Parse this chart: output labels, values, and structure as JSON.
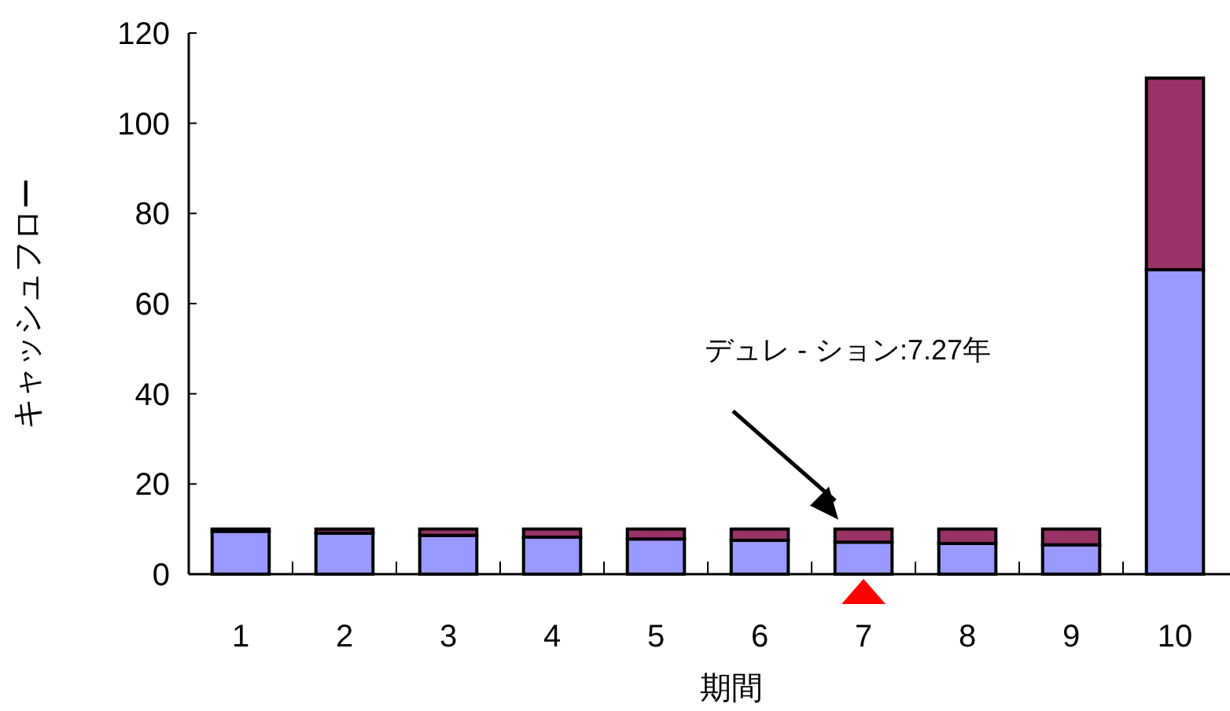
{
  "chart_data": {
    "type": "bar",
    "stacked": true,
    "xlabel": "期間",
    "ylabel": "キャッシュフロー",
    "categories": [
      "1",
      "2",
      "3",
      "4",
      "5",
      "6",
      "7",
      "8",
      "9",
      "10"
    ],
    "series": [
      {
        "color": "#9999ff",
        "values": [
          9.5,
          9.1,
          8.6,
          8.2,
          7.8,
          7.5,
          7.1,
          6.8,
          6.5,
          67.5
        ]
      },
      {
        "color": "#993366",
        "values": [
          0.5,
          0.9,
          1.4,
          1.8,
          2.2,
          2.5,
          2.9,
          3.2,
          3.5,
          42.5
        ]
      }
    ],
    "ylim": [
      0,
      120
    ],
    "yticks": [
      0,
      20,
      40,
      60,
      80,
      100,
      120
    ],
    "annotations": [
      "デュレ - ション:7.27年"
    ]
  }
}
